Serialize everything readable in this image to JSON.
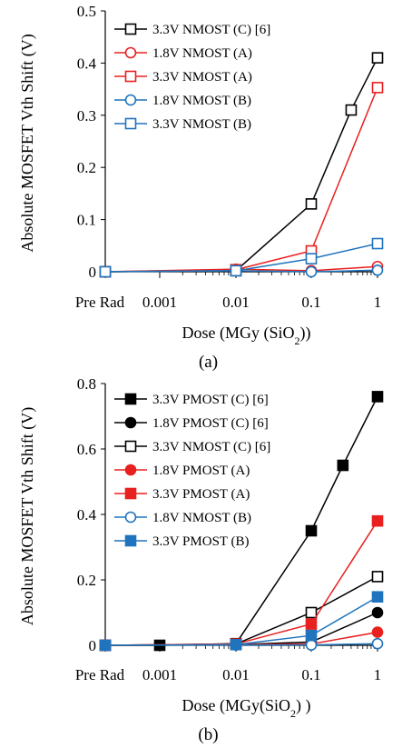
{
  "chart_data": [
    {
      "type": "line",
      "caption": "(a)",
      "xlabel": "Dose (MGy (SiO₂))",
      "ylabel": "Absolute MOSFET Vth Shift (V)",
      "ylim": [
        0,
        0.5
      ],
      "y_ticks": [
        "0",
        "0.1",
        "0.2",
        "0.3",
        "0.4",
        "0.5"
      ],
      "x_ticks": [
        "Pre Rad",
        "0.001",
        "0.01",
        "0.1",
        "1"
      ],
      "x_scale": "log",
      "grid": false,
      "legend_position": "top-left",
      "series": [
        {
          "name": "3.3V NMOST (C) [6]",
          "color": "#000000",
          "marker": "square",
          "filled": false,
          "points": [
            [
              "Pre Rad",
              0
            ],
            [
              0.01,
              0.002
            ],
            [
              0.1,
              0.13
            ],
            [
              0.4,
              0.31
            ],
            [
              1,
              0.41
            ]
          ]
        },
        {
          "name": "1.8V NMOST (A)",
          "color": "#e8201f",
          "marker": "circle",
          "filled": false,
          "points": [
            [
              "Pre Rad",
              0
            ],
            [
              0.01,
              0.005
            ],
            [
              0.1,
              0.002
            ],
            [
              1,
              0.01
            ]
          ]
        },
        {
          "name": "3.3V NMOST (A)",
          "color": "#e8201f",
          "marker": "square",
          "filled": false,
          "points": [
            [
              "Pre Rad",
              0
            ],
            [
              0.01,
              0.004
            ],
            [
              0.1,
              0.04
            ],
            [
              1,
              0.353
            ]
          ]
        },
        {
          "name": "1.8V NMOST (B)",
          "color": "#1f74bd",
          "marker": "circle",
          "filled": false,
          "points": [
            [
              "Pre Rad",
              0
            ],
            [
              0.01,
              0.002
            ],
            [
              0.1,
              0.0
            ],
            [
              1,
              0.003
            ]
          ]
        },
        {
          "name": "3.3V NMOST (B)",
          "color": "#1f74bd",
          "marker": "square",
          "filled": false,
          "points": [
            [
              "Pre Rad",
              0
            ],
            [
              0.01,
              0.002
            ],
            [
              0.1,
              0.025
            ],
            [
              1,
              0.054
            ]
          ]
        }
      ]
    },
    {
      "type": "line",
      "caption": "(b)",
      "xlabel": "Dose (MGy(SiO₂) )",
      "ylabel": "Absolute MOSFET Vth Shift (V)",
      "ylim": [
        0,
        0.8
      ],
      "y_ticks": [
        "0",
        "0.2",
        "0.4",
        "0.6",
        "0.8"
      ],
      "x_ticks": [
        "Pre Rad",
        "0.001",
        "0.01",
        "0.1",
        "1"
      ],
      "x_scale": "log",
      "grid": false,
      "legend_position": "top-left",
      "series": [
        {
          "name": "3.3V PMOST (C) [6]",
          "color": "#000000",
          "marker": "square",
          "filled": true,
          "fill": "#000000",
          "points": [
            [
              "Pre Rad",
              0
            ],
            [
              0.001,
              0
            ],
            [
              0.01,
              0.005
            ],
            [
              0.1,
              0.35
            ],
            [
              0.3,
              0.55
            ],
            [
              1,
              0.76
            ]
          ]
        },
        {
          "name": "1.8V PMOST (C) [6]",
          "color": "#000000",
          "marker": "circle",
          "filled": true,
          "fill": "#000000",
          "points": [
            [
              "Pre Rad",
              0
            ],
            [
              0.01,
              0.002
            ],
            [
              0.1,
              0.01
            ],
            [
              1,
              0.1
            ]
          ]
        },
        {
          "name": "3.3V NMOST (C) [6]",
          "color": "#000000",
          "marker": "square",
          "filled": false,
          "points": [
            [
              "Pre Rad",
              0
            ],
            [
              0.01,
              0.004
            ],
            [
              0.1,
              0.1
            ],
            [
              1,
              0.21
            ]
          ]
        },
        {
          "name": "1.8V PMOST (A)",
          "color": "#e8201f",
          "marker": "circle",
          "filled": true,
          "fill": "#e8201f",
          "points": [
            [
              "Pre Rad",
              0
            ],
            [
              0.01,
              0.002
            ],
            [
              0.1,
              0.004
            ],
            [
              1,
              0.04
            ]
          ]
        },
        {
          "name": "3.3V PMOST (A)",
          "color": "#e8201f",
          "marker": "square",
          "filled": true,
          "fill": "#e8201f",
          "points": [
            [
              "Pre Rad",
              0
            ],
            [
              0.01,
              0.004
            ],
            [
              0.1,
              0.065
            ],
            [
              1,
              0.38
            ]
          ]
        },
        {
          "name": "1.8V NMOST (B)",
          "color": "#1f74bd",
          "marker": "circle",
          "filled": false,
          "points": [
            [
              "Pre Rad",
              0
            ],
            [
              0.01,
              0.001
            ],
            [
              0.1,
              0.001
            ],
            [
              1,
              0.005
            ]
          ]
        },
        {
          "name": "3.3V PMOST (B)",
          "color": "#1f74bd",
          "marker": "square",
          "filled": true,
          "fill": "#1f74bd",
          "points": [
            [
              "Pre Rad",
              0
            ],
            [
              0.01,
              0.002
            ],
            [
              0.1,
              0.03
            ],
            [
              1,
              0.148
            ]
          ]
        }
      ]
    }
  ]
}
